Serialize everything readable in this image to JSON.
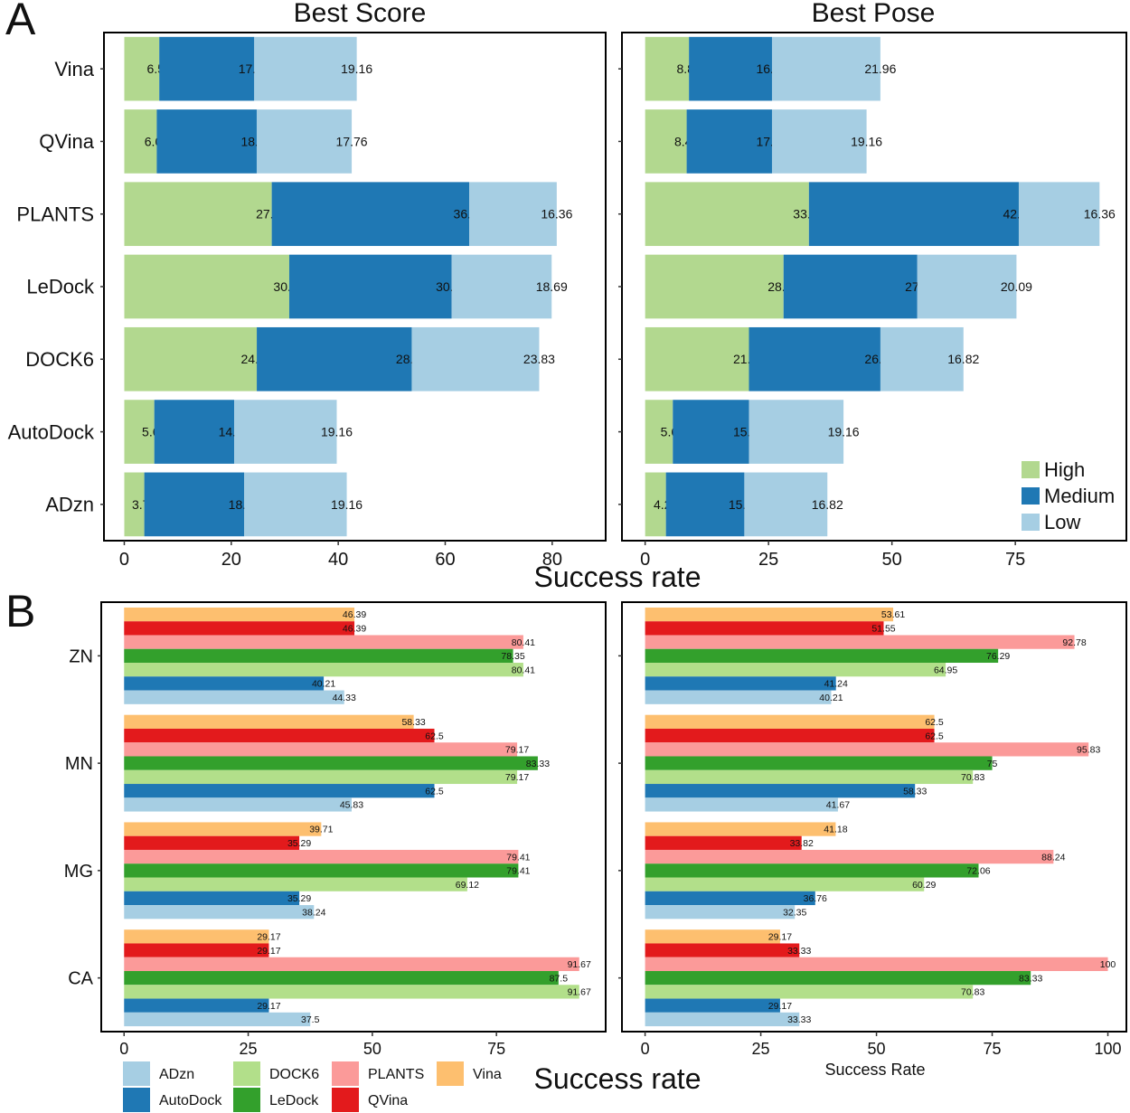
{
  "panel_labels": {
    "a": "A",
    "b": "B"
  },
  "chart_data": [
    {
      "type": "bar",
      "orientation": "horizontal",
      "stacked": true,
      "title": "Best Score",
      "xlabel": "Success rate",
      "categories": [
        "Vina",
        "QVina",
        "PLANTS",
        "LeDock",
        "DOCK6",
        "AutoDock",
        "ADzn"
      ],
      "series": [
        {
          "name": "High",
          "color": "#b2d88f",
          "values": [
            6.54,
            6.07,
            27.57,
            30.84,
            24.77,
            5.61,
            3.74
          ]
        },
        {
          "name": "Medium",
          "color": "#1f78b4",
          "values": [
            17.76,
            18.69,
            36.92,
            30.37,
            28.97,
            14.95,
            18.69
          ]
        },
        {
          "name": "Low",
          "color": "#a6cee3",
          "values": [
            19.16,
            17.76,
            16.36,
            18.69,
            23.83,
            19.16,
            19.16
          ]
        }
      ],
      "xlim": [
        -3.8,
        90
      ],
      "xticks": [
        0,
        20,
        40,
        60,
        80
      ],
      "legend": "none"
    },
    {
      "type": "bar",
      "orientation": "horizontal",
      "stacked": true,
      "title": "Best Pose",
      "xlabel": "",
      "categories": [
        "Vina",
        "QVina",
        "PLANTS",
        "LeDock",
        "DOCK6",
        "AutoDock",
        "ADzn"
      ],
      "series": [
        {
          "name": "High",
          "color": "#b2d88f",
          "values": [
            8.88,
            8.41,
            33.18,
            28.04,
            21.03,
            5.61,
            4.21
          ]
        },
        {
          "name": "Medium",
          "color": "#1f78b4",
          "values": [
            16.82,
            17.29,
            42.52,
            27.1,
            26.64,
            15.42,
            15.89
          ]
        },
        {
          "name": "Low",
          "color": "#a6cee3",
          "values": [
            21.96,
            19.16,
            16.36,
            20.09,
            16.82,
            19.16,
            16.82
          ]
        }
      ],
      "xlim": [
        -4.7,
        97.5
      ],
      "xticks": [
        0,
        25,
        50,
        75
      ],
      "legend": "bottom-right"
    },
    {
      "type": "bar",
      "orientation": "horizontal",
      "stacked": false,
      "title": "",
      "xlabel": "Success rate",
      "categories": [
        "ZN",
        "MN",
        "MG",
        "CA"
      ],
      "series": [
        {
          "name": "Vina",
          "color": "#fdbf6f",
          "values": [
            46.39,
            58.33,
            39.71,
            29.17
          ]
        },
        {
          "name": "QVina",
          "color": "#e31a1c",
          "values": [
            46.39,
            62.5,
            35.29,
            29.17
          ]
        },
        {
          "name": "PLANTS",
          "color": "#fb9a99",
          "values": [
            80.41,
            79.17,
            79.41,
            91.67
          ]
        },
        {
          "name": "LeDock",
          "color": "#33a02c",
          "values": [
            78.35,
            83.33,
            79.41,
            87.5
          ]
        },
        {
          "name": "DOCK6",
          "color": "#b2df8a",
          "values": [
            80.41,
            79.17,
            69.12,
            91.67
          ]
        },
        {
          "name": "AutoDock",
          "color": "#1f78b4",
          "values": [
            40.21,
            62.5,
            35.29,
            29.17
          ]
        },
        {
          "name": "ADzn",
          "color": "#a6cee3",
          "values": [
            44.33,
            45.83,
            38.24,
            37.5
          ]
        }
      ],
      "xlim": [
        -4.6,
        97
      ],
      "xticks": [
        0,
        25,
        50,
        75
      ],
      "legend": "bottom-left"
    },
    {
      "type": "bar",
      "orientation": "horizontal",
      "stacked": false,
      "title": "",
      "xlabel": "Success Rate",
      "categories": [
        "ZN",
        "MN",
        "MG",
        "CA"
      ],
      "series": [
        {
          "name": "Vina",
          "color": "#fdbf6f",
          "values": [
            53.61,
            62.5,
            41.18,
            29.17
          ]
        },
        {
          "name": "QVina",
          "color": "#e31a1c",
          "values": [
            51.55,
            62.5,
            33.82,
            33.33
          ]
        },
        {
          "name": "PLANTS",
          "color": "#fb9a99",
          "values": [
            92.78,
            95.83,
            88.24,
            100
          ]
        },
        {
          "name": "LeDock",
          "color": "#33a02c",
          "values": [
            76.29,
            75,
            72.06,
            83.33
          ]
        },
        {
          "name": "DOCK6",
          "color": "#b2df8a",
          "values": [
            64.95,
            70.83,
            60.29,
            70.83
          ]
        },
        {
          "name": "AutoDock",
          "color": "#1f78b4",
          "values": [
            41.24,
            58.33,
            36.76,
            29.17
          ]
        },
        {
          "name": "ADzn",
          "color": "#a6cee3",
          "values": [
            40.21,
            41.67,
            32.35,
            33.33
          ]
        }
      ],
      "xlim": [
        -5,
        104
      ],
      "xticks": [
        0,
        25,
        50,
        75,
        100
      ],
      "legend": "none"
    }
  ]
}
